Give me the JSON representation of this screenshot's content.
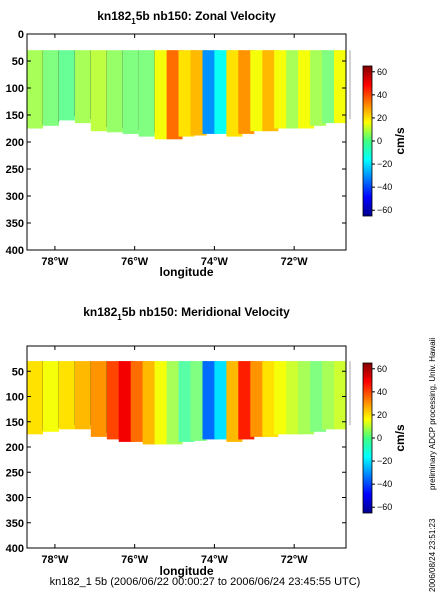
{
  "figure": {
    "footer": "kn182_1 5b (2006/06/22 00:00:27 to 2006/06/24 23:45:55 UTC)",
    "side_note": "preliminary ADCP processing,  Univ. Hawaii",
    "side_stamp": "2006/08/24 23:51:23"
  },
  "chart_data": [
    {
      "type": "heatmap",
      "title_main": "kn182",
      "title_sub": "1",
      "title_rest": "5b nb150: Zonal Velocity",
      "xlabel": "longitude",
      "ylabel": "",
      "xlim": [
        -78.7,
        -70.7
      ],
      "ylim": [
        400,
        0
      ],
      "xticks": [
        -78,
        -76,
        -74,
        -72
      ],
      "xtick_labels": [
        "78°W",
        "76°W",
        "74°W",
        "72°W"
      ],
      "yticks": [
        0,
        50,
        100,
        150,
        200,
        250,
        300,
        350,
        400
      ],
      "yticks_labels": [
        "0",
        "50",
        "100",
        "150",
        "200",
        "250",
        "300",
        "350",
        "400"
      ],
      "colorbar": {
        "label": "cm/s",
        "range": [
          -65,
          65
        ],
        "ticks": [
          60,
          40,
          20,
          0,
          -20,
          -40,
          -60
        ],
        "tick_labels": [
          "60",
          "40",
          "20",
          "0",
          "−20",
          "−40",
          "−60"
        ]
      },
      "depth_top": 30,
      "bins": [
        {
          "lon": -78.5,
          "bottom": 175,
          "v": 5
        },
        {
          "lon": -78.1,
          "bottom": 170,
          "v": 0
        },
        {
          "lon": -77.7,
          "bottom": 160,
          "v": -3
        },
        {
          "lon": -77.3,
          "bottom": 165,
          "v": 5
        },
        {
          "lon": -76.9,
          "bottom": 180,
          "v": 8
        },
        {
          "lon": -76.5,
          "bottom": 182,
          "v": 3
        },
        {
          "lon": -76.1,
          "bottom": 185,
          "v": 0
        },
        {
          "lon": -75.7,
          "bottom": 190,
          "v": 0
        },
        {
          "lon": -75.3,
          "bottom": 195,
          "v": 15
        },
        {
          "lon": -75.0,
          "bottom": 195,
          "v": 35
        },
        {
          "lon": -74.7,
          "bottom": 190,
          "v": 20
        },
        {
          "lon": -74.4,
          "bottom": 188,
          "v": 25
        },
        {
          "lon": -74.1,
          "bottom": 185,
          "v": -30
        },
        {
          "lon": -73.8,
          "bottom": 185,
          "v": -15
        },
        {
          "lon": -73.5,
          "bottom": 190,
          "v": 20
        },
        {
          "lon": -73.2,
          "bottom": 185,
          "v": 30
        },
        {
          "lon": -72.9,
          "bottom": 180,
          "v": 15
        },
        {
          "lon": -72.6,
          "bottom": 180,
          "v": 25
        },
        {
          "lon": -72.3,
          "bottom": 175,
          "v": 15
        },
        {
          "lon": -72.0,
          "bottom": 175,
          "v": 5
        },
        {
          "lon": -71.7,
          "bottom": 175,
          "v": 15
        },
        {
          "lon": -71.4,
          "bottom": 170,
          "v": 5
        },
        {
          "lon": -71.1,
          "bottom": 165,
          "v": 0
        },
        {
          "lon": -70.8,
          "bottom": 165,
          "v": 15
        }
      ]
    },
    {
      "type": "heatmap",
      "title_main": "kn182",
      "title_sub": "1",
      "title_rest": "5b nb150: Meridional Velocity",
      "xlabel": "longitude",
      "ylabel": "",
      "xlim": [
        -78.7,
        -70.7
      ],
      "ylim": [
        400,
        0
      ],
      "xticks": [
        -78,
        -76,
        -74,
        -72
      ],
      "xtick_labels": [
        "78°W",
        "76°W",
        "74°W",
        "72°W"
      ],
      "yticks": [
        50,
        100,
        150,
        200,
        250,
        300,
        350,
        400
      ],
      "yticks_labels": [
        "50",
        "100",
        "150",
        "200",
        "250",
        "300",
        "350",
        "400"
      ],
      "colorbar": {
        "label": "cm/s",
        "range": [
          -65,
          65
        ],
        "ticks": [
          60,
          40,
          20,
          0,
          -20,
          -40,
          -60
        ],
        "tick_labels": [
          "60",
          "40",
          "20",
          "0",
          "−20",
          "−40",
          "−60"
        ]
      },
      "depth_top": 30,
      "bins": [
        {
          "lon": -78.5,
          "bottom": 175,
          "v": 20
        },
        {
          "lon": -78.1,
          "bottom": 170,
          "v": 15
        },
        {
          "lon": -77.7,
          "bottom": 165,
          "v": 20
        },
        {
          "lon": -77.3,
          "bottom": 165,
          "v": 25
        },
        {
          "lon": -76.9,
          "bottom": 180,
          "v": 30
        },
        {
          "lon": -76.5,
          "bottom": 185,
          "v": 40
        },
        {
          "lon": -76.2,
          "bottom": 190,
          "v": 50
        },
        {
          "lon": -75.9,
          "bottom": 190,
          "v": 35
        },
        {
          "lon": -75.6,
          "bottom": 195,
          "v": 25
        },
        {
          "lon": -75.3,
          "bottom": 195,
          "v": 15
        },
        {
          "lon": -75.0,
          "bottom": 195,
          "v": 5
        },
        {
          "lon": -74.7,
          "bottom": 190,
          "v": -5
        },
        {
          "lon": -74.4,
          "bottom": 188,
          "v": 0
        },
        {
          "lon": -74.1,
          "bottom": 185,
          "v": -35
        },
        {
          "lon": -73.8,
          "bottom": 185,
          "v": -20
        },
        {
          "lon": -73.5,
          "bottom": 190,
          "v": 25
        },
        {
          "lon": -73.2,
          "bottom": 185,
          "v": 45
        },
        {
          "lon": -72.9,
          "bottom": 180,
          "v": 30
        },
        {
          "lon": -72.6,
          "bottom": 180,
          "v": 20
        },
        {
          "lon": -72.3,
          "bottom": 175,
          "v": 15
        },
        {
          "lon": -72.0,
          "bottom": 175,
          "v": 10
        },
        {
          "lon": -71.7,
          "bottom": 175,
          "v": 5
        },
        {
          "lon": -71.4,
          "bottom": 170,
          "v": 0
        },
        {
          "lon": -71.1,
          "bottom": 165,
          "v": 5
        },
        {
          "lon": -70.8,
          "bottom": 165,
          "v": 10
        }
      ]
    }
  ]
}
